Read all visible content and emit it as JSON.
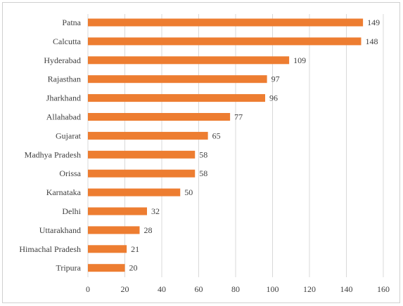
{
  "chart_data": {
    "type": "bar",
    "orientation": "horizontal",
    "title": "",
    "xlabel": "",
    "ylabel": "",
    "categories": [
      "Patna",
      "Calcutta",
      "Hyderabad",
      "Rajasthan",
      "Jharkhand",
      "Allahabad",
      "Gujarat",
      "Madhya Pradesh",
      "Orissa",
      "Karnataka",
      "Delhi",
      "Uttarakhand",
      "Himachal Pradesh",
      "Tripura"
    ],
    "values": [
      149,
      148,
      109,
      97,
      96,
      77,
      65,
      58,
      58,
      50,
      32,
      28,
      21,
      20
    ],
    "xlim": [
      0,
      160
    ],
    "xticks": [
      0,
      20,
      40,
      60,
      80,
      100,
      120,
      140,
      160
    ],
    "grid": true,
    "legend": "none",
    "bar_color": "#ED7D31",
    "data_labels": true
  }
}
